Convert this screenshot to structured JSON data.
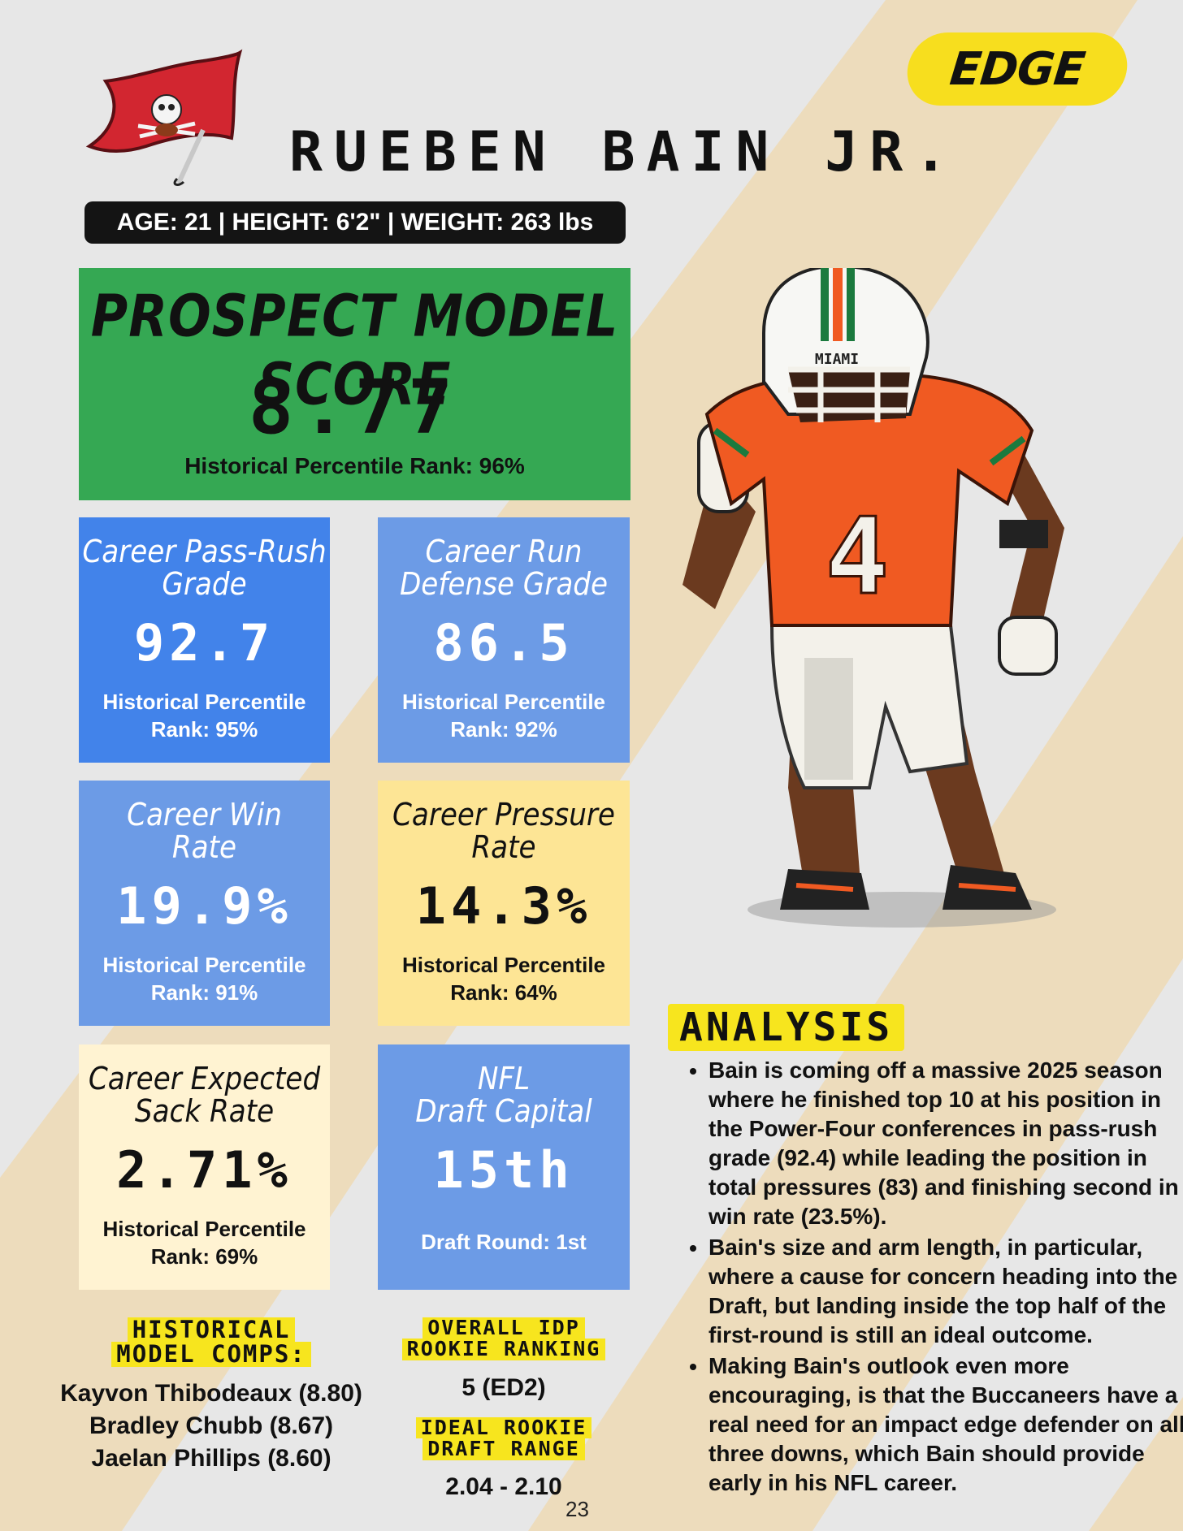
{
  "position": "EDGE",
  "player": {
    "name": "RUEBEN BAIN JR.",
    "bio": "AGE: 21 | HEIGHT: 6'2\" | WEIGHT: 263 lbs",
    "jersey_number": "4",
    "helmet_text": "MIAMI"
  },
  "prospect_model": {
    "title": "PROSPECT MODEL SCORE",
    "score": "8.77",
    "percentile": "Historical  Percentile Rank: 96%"
  },
  "stats": [
    {
      "title_line1": "Career Pass-Rush",
      "title_line2": "Grade",
      "value": "92.7",
      "sub_line1": "Historical  Percentile",
      "sub_line2": "Rank: 95%"
    },
    {
      "title_line1": "Career Run",
      "title_line2": "Defense Grade",
      "value": "86.5",
      "sub_line1": "Historical  Percentile",
      "sub_line2": "Rank: 92%"
    },
    {
      "title_line1": "Career Win",
      "title_line2": "Rate",
      "value": "19.9%",
      "sub_line1": "Historical  Percentile",
      "sub_line2": "Rank: 91%"
    },
    {
      "title_line1": "Career Pressure",
      "title_line2": "Rate",
      "value": "14.3%",
      "sub_line1": "Historical  Percentile",
      "sub_line2": "Rank: 64%"
    },
    {
      "title_line1": "Career Expected",
      "title_line2": "Sack Rate",
      "value": "2.71%",
      "sub_line1": "Historical  Percentile",
      "sub_line2": "Rank: 69%"
    },
    {
      "title_line1": "NFL",
      "title_line2": "Draft Capital",
      "value": "15th",
      "sub_line1": "Draft Round: 1st",
      "sub_line2": ""
    }
  ],
  "comps": {
    "heading_line1": "HISTORICAL",
    "heading_line2": "MODEL COMPS:",
    "items": [
      "Kayvon Thibodeaux (8.80)",
      "Bradley Chubb (8.67)",
      "Jaelan Phillips (8.60)"
    ]
  },
  "idp_ranking": {
    "heading_line1": "OVERALL IDP",
    "heading_line2": "ROOKIE RANKING",
    "value": "5 (ED2)"
  },
  "draft_range": {
    "heading_line1": "IDEAL ROOKIE",
    "heading_line2": "DRAFT RANGE",
    "value": "2.04 - 2.10"
  },
  "analysis": {
    "heading": "ANALYSIS",
    "bullets": [
      "Bain is coming off a massive 2025 season where he finished top 10 at his position in the Power-Four conferences in pass-rush grade (92.4) while leading the position in total pressures (83) and finishing second in win rate (23.5%).",
      "Bain's size and arm length, in particular, where a cause for concern heading into the Draft, but landing inside the top half of the first-round is still an ideal outcome.",
      "Making Bain's outlook even more encouraging, is that the Buccaneers have a real need for an impact edge defender on all three downs, which Bain should provide early in his NFL career."
    ]
  },
  "page_number": "23",
  "colors": {
    "background": "#e7e7e7",
    "stripe": "#eddcbc",
    "score_green": "#35a853",
    "card_blue": "#4283ea",
    "card_mid_blue": "#6c9be6",
    "card_yellow": "#fde595",
    "card_cream": "#fff3d2",
    "highlight_yellow": "#f7e51e",
    "bucs_red": "#d22630",
    "canes_orange": "#f05a22",
    "canes_green": "#1b7a3e"
  }
}
